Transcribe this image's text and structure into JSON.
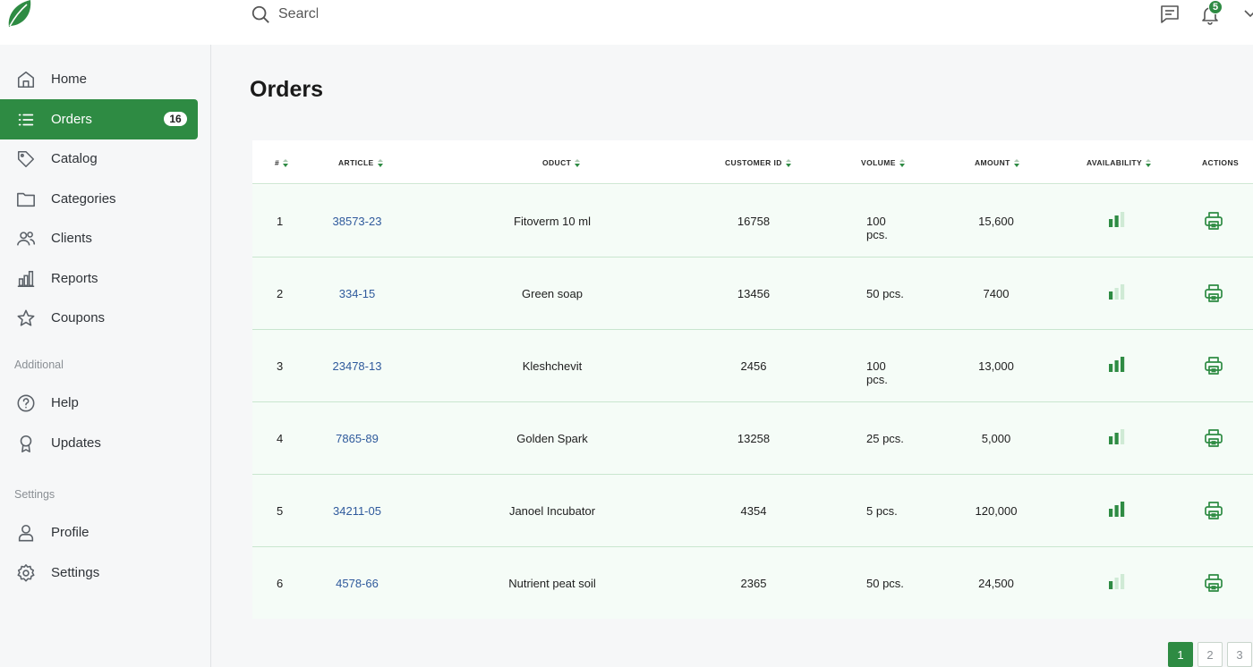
{
  "search": {
    "placeholder": "Search"
  },
  "header": {
    "notification_count": "5"
  },
  "sidebar": {
    "main_items": [
      {
        "label": "Home",
        "icon": "home-icon"
      },
      {
        "label": "Orders",
        "icon": "list-icon",
        "badge": "16",
        "active": true
      },
      {
        "label": "Catalog",
        "icon": "tag-icon"
      },
      {
        "label": "Categories",
        "icon": "folder-icon"
      },
      {
        "label": "Clients",
        "icon": "users-icon"
      },
      {
        "label": "Reports",
        "icon": "bar-chart-icon"
      },
      {
        "label": "Coupons",
        "icon": "star-icon"
      }
    ],
    "additional_label": "Additional",
    "additional_items": [
      {
        "label": "Help",
        "icon": "help-icon"
      },
      {
        "label": "Updates",
        "icon": "award-icon"
      }
    ],
    "settings_label": "Settings",
    "settings_items": [
      {
        "label": "Profile",
        "icon": "user-icon"
      },
      {
        "label": "Settings",
        "icon": "gear-icon"
      }
    ]
  },
  "main": {
    "title": "Orders",
    "table": {
      "columns": [
        "#",
        "ARTICLE",
        "ODUCT",
        "CUSTOMER ID",
        "VOLUME",
        "AMOUNT",
        "AVAILABILITY",
        "ACTIONS"
      ],
      "rows": [
        {
          "num": "1",
          "article": "38573-23",
          "product": "Fitoverm 10 ml",
          "customer_id": "16758",
          "volume_line1": "100",
          "volume_line2": "pcs.",
          "amount": "15,600",
          "availability": 2
        },
        {
          "num": "2",
          "article": "334-15",
          "product": "Green soap",
          "customer_id": "13456",
          "volume_line1": "50 pcs.",
          "volume_line2": "",
          "amount": "7400",
          "availability": 1
        },
        {
          "num": "3",
          "article": "23478-13",
          "product": "Kleshchevit",
          "customer_id": "2456",
          "volume_line1": "100",
          "volume_line2": "pcs.",
          "amount": "13,000",
          "availability": 3
        },
        {
          "num": "4",
          "article": "7865-89",
          "product": "Golden Spark",
          "customer_id": "13258",
          "volume_line1": "25 pcs.",
          "volume_line2": "",
          "amount": "5,000",
          "availability": 2
        },
        {
          "num": "5",
          "article": "34211-05",
          "product": "Janoel Incubator",
          "customer_id": "4354",
          "volume_line1": "5 pcs.",
          "volume_line2": "",
          "amount": "120,000",
          "availability": 3
        },
        {
          "num": "6",
          "article": "4578-66",
          "product": "Nutrient peat soil",
          "customer_id": "2365",
          "volume_line1": "50 pcs.",
          "volume_line2": "",
          "amount": "24,500",
          "availability": 1
        }
      ]
    },
    "pagination": [
      "1",
      "2",
      "3"
    ],
    "current_page": "1"
  },
  "colors": {
    "accent": "#2e8b43",
    "link": "#2f5a9c",
    "row_bg": "#f5fcf7",
    "row_border": "#c9e6cf"
  }
}
